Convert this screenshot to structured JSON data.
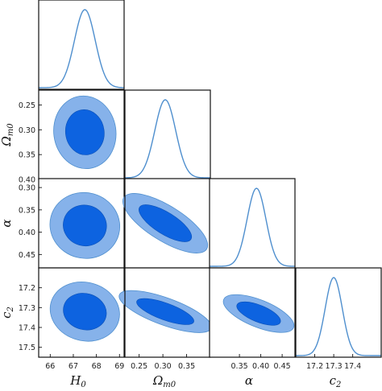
{
  "chart_data": {
    "type": "corner",
    "params": [
      {
        "symbol": "H",
        "sub": "0",
        "mean": 67.5,
        "range": [
          65.5,
          69.2
        ],
        "ticks": [
          66,
          67,
          68,
          69
        ],
        "tick_labels": [
          "66",
          "67",
          "68",
          "69"
        ]
      },
      {
        "symbol": "Ω",
        "sub": "m0",
        "mean": 0.305,
        "range": [
          0.22,
          0.4
        ],
        "ticks": [
          0.25,
          0.3,
          0.35
        ],
        "tick_labels": [
          "0.25",
          "0.30",
          "0.35"
        ],
        "row_ticks": [
          0.25,
          0.3,
          0.35,
          0.4
        ],
        "row_tick_labels": [
          "0.25",
          "0.30",
          "0.35",
          "0.40"
        ]
      },
      {
        "symbol": "α",
        "sub": "",
        "mean": 0.39,
        "range": [
          0.28,
          0.48
        ],
        "ticks": [
          0.35,
          0.4,
          0.45
        ],
        "tick_labels": [
          "0.35",
          "0.40",
          "0.45"
        ],
        "row_ticks": [
          0.3,
          0.35,
          0.4,
          0.45
        ],
        "row_tick_labels": [
          "0.30",
          "0.35",
          "0.40",
          "0.45"
        ]
      },
      {
        "symbol": "c",
        "sub": "2",
        "mean": 17.3,
        "range": [
          17.1,
          17.55
        ],
        "ticks": [
          17.2,
          17.3,
          17.4
        ],
        "tick_labels": [
          "17.2",
          "17.3",
          "17.4"
        ],
        "row_ticks": [
          17.2,
          17.3,
          17.4,
          17.5
        ],
        "row_tick_labels": [
          "17.2",
          "17.3",
          "17.4",
          "17.5"
        ]
      }
    ],
    "marginal_sigma": [
      0.45,
      0.022,
      0.022,
      0.045
    ],
    "contours_2d": [
      {
        "x": 0,
        "y": 1,
        "center": [
          67.5,
          0.305
        ],
        "sigma": [
          0.55,
          0.03
        ],
        "rotation_deg": -8
      },
      {
        "x": 0,
        "y": 2,
        "center": [
          67.5,
          0.385
        ],
        "sigma": [
          0.62,
          0.03
        ],
        "rotation_deg": 15
      },
      {
        "x": 1,
        "y": 2,
        "center": [
          0.305,
          0.38
        ],
        "sigma": [
          0.042,
          0.016
        ],
        "rotation_deg": 32
      },
      {
        "x": 0,
        "y": 3,
        "center": [
          67.5,
          17.32
        ],
        "sigma": [
          0.62,
          0.06
        ],
        "rotation_deg": 15
      },
      {
        "x": 1,
        "y": 3,
        "center": [
          0.305,
          17.32
        ],
        "sigma": [
          0.042,
          0.028
        ],
        "rotation_deg": 20
      },
      {
        "x": 2,
        "y": 3,
        "center": [
          0.395,
          17.33
        ],
        "sigma": [
          0.036,
          0.028
        ],
        "rotation_deg": 22
      }
    ],
    "colors": {
      "inner": "#0d63e0",
      "outer": "#86b2ea",
      "line": "#4f8fce",
      "frame": "#111111"
    }
  }
}
